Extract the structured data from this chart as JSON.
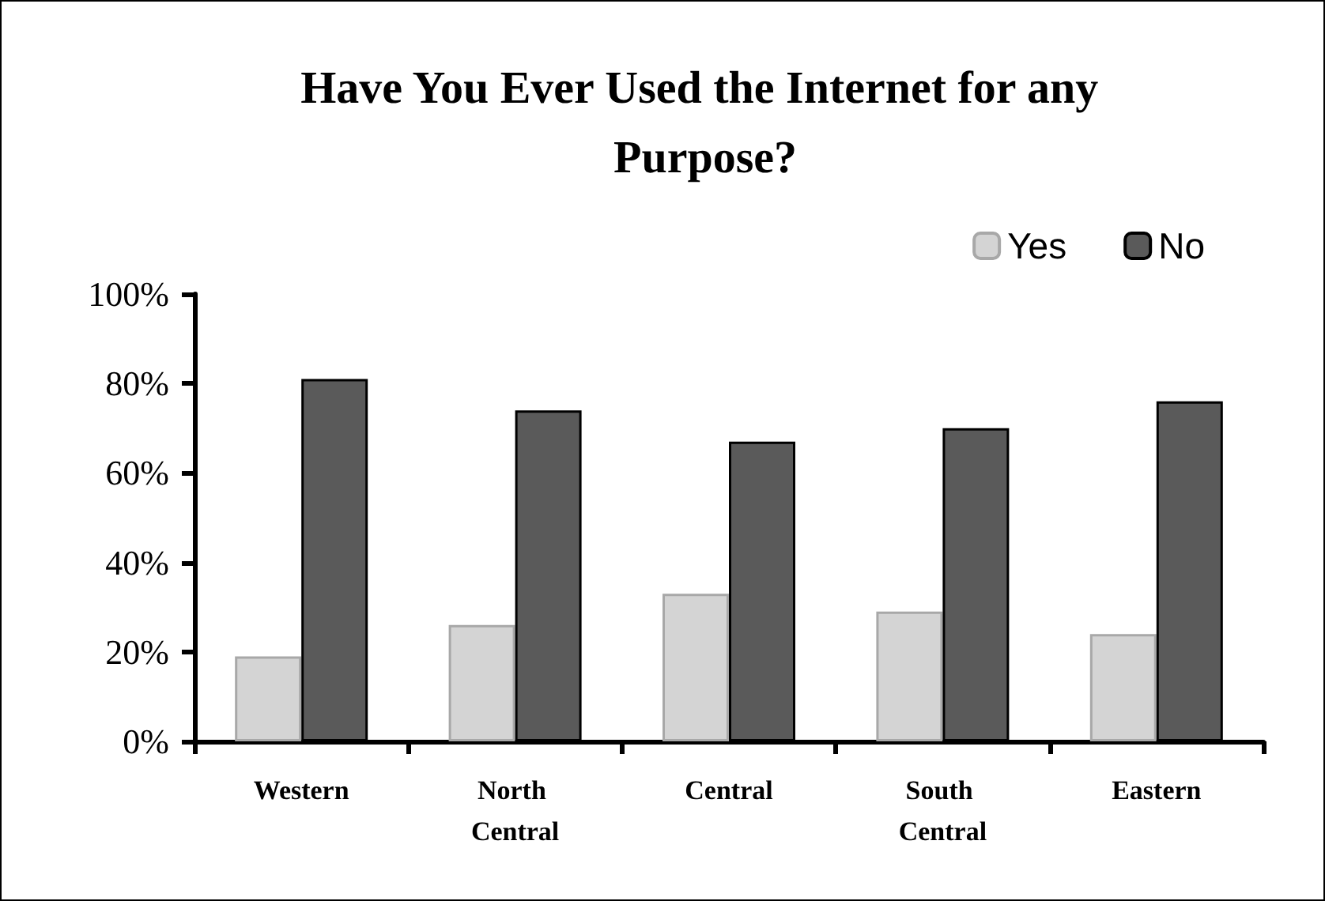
{
  "chart_data": {
    "type": "bar",
    "title": "Have You Ever Used the Internet for any Purpose?",
    "categories": [
      "Western",
      "North Central",
      "Central",
      "South Central",
      "Eastern"
    ],
    "series": [
      {
        "name": "Yes",
        "color": "#d4d4d4",
        "values": [
          19,
          26,
          33,
          29,
          24
        ]
      },
      {
        "name": "No",
        "color": "#5a5a5a",
        "values": [
          81,
          74,
          67,
          70,
          76
        ]
      }
    ],
    "ylim": [
      0,
      100
    ],
    "yticks": [
      {
        "value": 0,
        "label": "0%"
      },
      {
        "value": 20,
        "label": "20%"
      },
      {
        "value": 40,
        "label": "40%"
      },
      {
        "value": 60,
        "label": "60%"
      },
      {
        "value": 80,
        "label": "80%"
      },
      {
        "value": 100,
        "label": "100%"
      }
    ],
    "grid": false,
    "legend": "top right"
  }
}
